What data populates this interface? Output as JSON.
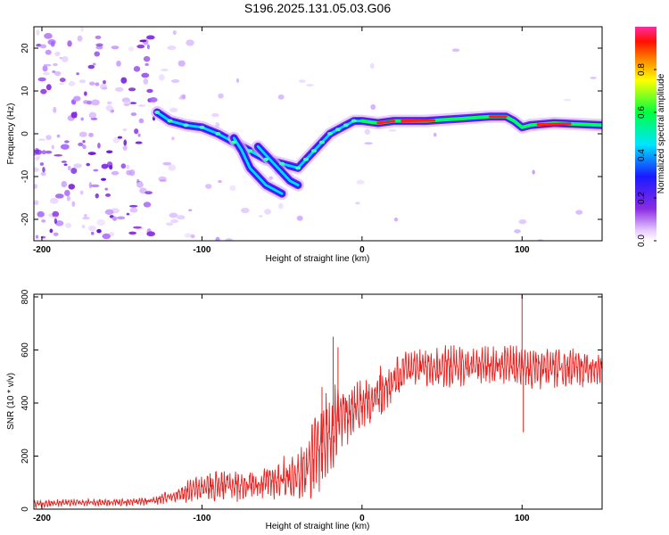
{
  "title": "S196.2025.131.05.03.G06",
  "colors": {
    "snr_line": "#e8201e",
    "background": "#ffffff",
    "frame": "#000000"
  },
  "chart_data": [
    {
      "type": "heatmap",
      "name": "spectrogram",
      "xlabel": "Height of straight line (km)",
      "ylabel": "Frequency (Hz)",
      "xlim": [
        -205,
        150
      ],
      "ylim": [
        -25,
        25
      ],
      "xticks": [
        -200,
        -100,
        0,
        100
      ],
      "xtick_labels": [
        "-200",
        "-100",
        "0",
        "100"
      ],
      "yticks": [
        -20,
        -10,
        0,
        10,
        20
      ],
      "ytick_labels": [
        "-20",
        "-10",
        "0",
        "10",
        "20"
      ],
      "colorbar": {
        "label": "Normalized spectral amplitude",
        "range": [
          0,
          1
        ],
        "ticks": [
          0.0,
          0.2,
          0.4,
          0.6,
          0.8
        ],
        "tick_labels": [
          "0.0",
          "0.2",
          "0.4",
          "0.6",
          "0.8"
        ]
      },
      "ridges": [
        {
          "name": "main-ridge",
          "points": [
            [
              -128,
              5
            ],
            [
              -120,
              3
            ],
            [
              -110,
              2
            ],
            [
              -100,
              1.5
            ],
            [
              -90,
              0
            ],
            [
              -80,
              -2
            ],
            [
              -70,
              -4
            ],
            [
              -60,
              -6
            ],
            [
              -50,
              -7
            ],
            [
              -40,
              -8
            ],
            [
              -35,
              -6
            ],
            [
              -30,
              -4
            ],
            [
              -25,
              -2
            ],
            [
              -20,
              0
            ],
            [
              -15,
              1
            ],
            [
              -10,
              2
            ],
            [
              -5,
              3
            ],
            [
              0,
              3
            ],
            [
              10,
              2.5
            ],
            [
              20,
              3
            ],
            [
              40,
              3
            ],
            [
              60,
              3.5
            ],
            [
              80,
              4
            ],
            [
              90,
              4
            ],
            [
              95,
              3
            ],
            [
              100,
              1.5
            ],
            [
              105,
              2
            ],
            [
              120,
              2.5
            ],
            [
              150,
              2
            ]
          ]
        },
        {
          "name": "lower-branch",
          "points": [
            [
              -80,
              -1
            ],
            [
              -75,
              -4
            ],
            [
              -70,
              -8
            ],
            [
              -65,
              -10
            ],
            [
              -60,
              -12
            ],
            [
              -55,
              -13
            ],
            [
              -50,
              -14
            ]
          ]
        },
        {
          "name": "middle-branch",
          "points": [
            [
              -65,
              -3
            ],
            [
              -60,
              -5
            ],
            [
              -55,
              -7
            ],
            [
              -50,
              -9
            ],
            [
              -45,
              -11
            ],
            [
              -40,
              -12
            ]
          ]
        }
      ]
    },
    {
      "type": "line",
      "name": "snr",
      "xlabel": "Height of straight line (km)",
      "ylabel": "SNR (10 * v/v)",
      "xlim": [
        -205,
        150
      ],
      "ylim": [
        0,
        810
      ],
      "xticks": [
        -200,
        -100,
        0,
        100
      ],
      "xtick_labels": [
        "-200",
        "-100",
        "0",
        "100"
      ],
      "yticks": [
        0,
        200,
        400,
        600,
        800
      ],
      "ytick_labels": [
        "0",
        "200",
        "400",
        "600",
        "800"
      ],
      "envelope": {
        "x": [
          -205,
          -180,
          -150,
          -130,
          -120,
          -100,
          -90,
          -80,
          -60,
          -40,
          -30,
          -20,
          -15,
          -10,
          -5,
          0,
          10,
          20,
          30,
          40,
          60,
          80,
          95,
          100,
          110,
          130,
          150
        ],
        "mid": [
          20,
          25,
          25,
          30,
          50,
          80,
          90,
          90,
          100,
          130,
          200,
          300,
          330,
          360,
          380,
          400,
          430,
          480,
          530,
          530,
          540,
          540,
          540,
          530,
          530,
          530,
          540
        ],
        "amp": [
          12,
          12,
          12,
          15,
          25,
          45,
          55,
          55,
          60,
          80,
          140,
          160,
          150,
          110,
          90,
          90,
          100,
          80,
          70,
          70,
          70,
          70,
          70,
          70,
          70,
          70,
          70
        ]
      },
      "spikes": [
        {
          "x": -18,
          "y": 650
        },
        {
          "x": -15,
          "y": 610
        },
        {
          "x": -25,
          "y": 460
        },
        {
          "x": 100,
          "y": 810
        },
        {
          "x": 100.8,
          "y": 290
        }
      ]
    }
  ]
}
